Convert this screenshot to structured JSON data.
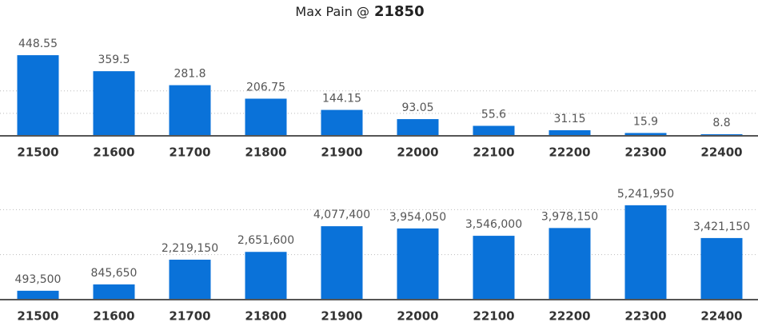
{
  "title": "Max Pain @",
  "max_pain": "21850",
  "chart_data": [
    {
      "type": "bar",
      "categories": [
        "21500",
        "21600",
        "21700",
        "21800",
        "21900",
        "22000",
        "22100",
        "22200",
        "22300",
        "22400"
      ],
      "values": [
        448.55,
        359.5,
        281.8,
        206.75,
        144.15,
        93.05,
        55.6,
        31.15,
        15.9,
        8.8
      ],
      "color": "#0a72d9",
      "ylim": [
        0,
        600
      ],
      "yticks": [
        0,
        125,
        250
      ],
      "grid": true
    },
    {
      "type": "bar",
      "categories": [
        "21500",
        "21600",
        "21700",
        "21800",
        "21900",
        "22000",
        "22100",
        "22200",
        "22300",
        "22400"
      ],
      "values": [
        493500,
        845650,
        2219150,
        2651600,
        4077400,
        3954050,
        3546000,
        3978150,
        5241950,
        3421150
      ],
      "value_labels": [
        "493,500",
        "845,650",
        "2,219,150",
        "2,651,600",
        "4,077,400",
        "3,954,050",
        "3,546,000",
        "3,978,150",
        "5,241,950",
        "3,421,150"
      ],
      "color": "#0a72d9",
      "ylim": [
        0,
        7100000
      ],
      "yticks": [
        0,
        2500000,
        5000000
      ],
      "grid": true
    }
  ]
}
